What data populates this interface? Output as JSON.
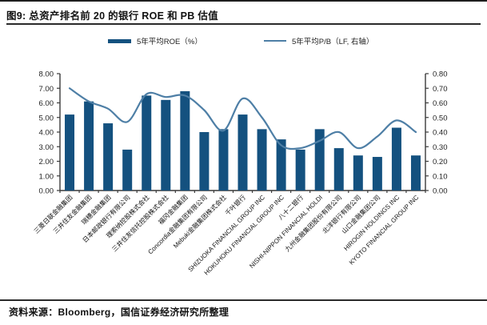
{
  "title": "图9: 总资产排名前 20 的银行 ROE 和 PB 估值",
  "source": "资料来源：Bloomberg，国信证券经济研究所整理",
  "legend": [
    {
      "label": "5年平均ROE（%）",
      "type": "bar",
      "color": "#14517f"
    },
    {
      "label": "5年平均P/B（LF, 右轴）",
      "type": "line",
      "color": "#4e7fa6"
    }
  ],
  "colors": {
    "bar": "#14517f",
    "line": "#4e7fa6",
    "axis": "#3a3a3a",
    "tick_label": "#222222",
    "x_label": "#111111"
  },
  "chart_data": {
    "type": "bar",
    "subtype": "bar-line-combo",
    "title": "图9: 总资产排名前 20 的银行 ROE 和 PB 估值",
    "categories": [
      "三菱日联金融集团",
      "三井住友金融集团",
      "瑞穗金融集团",
      "日本邮政银行有限公司",
      "理索纳控股株式会社",
      "三井住友信托控股株式会社",
      "福冈金融集团",
      "Concordia金融集团有限公司",
      "Mebuki金融集团株式会社",
      "千叶银行",
      "SHIZUOKA FINANCIAL GROUP INC",
      "HOKUHOKU FINANCIAL GROUP INC",
      "八十二银行",
      "NISHI-NIPPON FINANCIAL HOLDI",
      "九州金融集团股份有限公司",
      "北洋银行有限公司",
      "山口金融集团公司",
      "HIROGIN HOLDINGS INC",
      "KYOTO FINANCIAL GROUP INC"
    ],
    "series": [
      {
        "name": "5年平均ROE（%）",
        "type": "bar",
        "axis": "left",
        "color": "#14517f",
        "values": [
          5.2,
          6.1,
          4.6,
          2.8,
          6.5,
          6.2,
          6.8,
          4.0,
          4.2,
          5.2,
          4.2,
          3.5,
          2.8,
          4.2,
          2.9,
          2.4,
          2.3,
          4.3,
          2.4
        ]
      },
      {
        "name": "5年平均P/B（LF, 右轴）",
        "type": "line",
        "axis": "right",
        "color": "#4e7fa6",
        "values": [
          0.7,
          0.61,
          0.56,
          0.47,
          0.66,
          0.64,
          0.65,
          0.55,
          0.41,
          0.63,
          0.5,
          0.31,
          0.29,
          0.34,
          0.4,
          0.29,
          0.37,
          0.48,
          0.4
        ]
      }
    ],
    "left_axis": {
      "label": "",
      "min": 0,
      "max": 8,
      "step": 1,
      "tick_format": "0.00"
    },
    "right_axis": {
      "label": "",
      "min": 0,
      "max": 0.8,
      "step": 0.1,
      "tick_format": "0.00"
    },
    "grid": false,
    "legend_position": "top"
  }
}
